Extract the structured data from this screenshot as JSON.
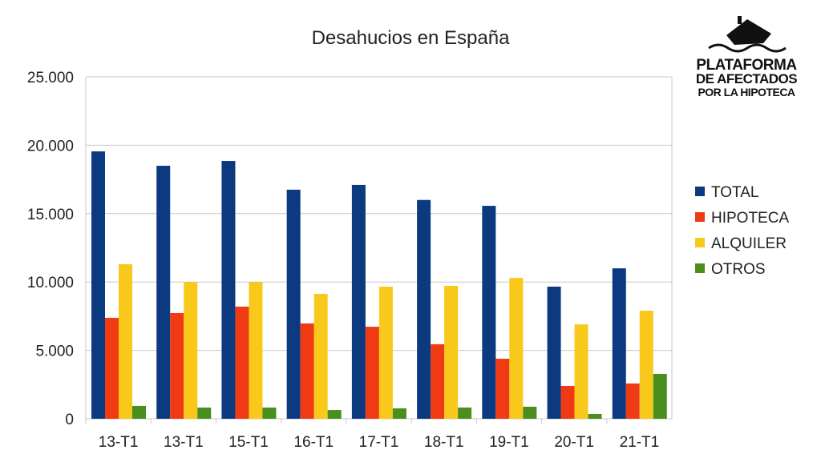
{
  "chart_data": {
    "type": "bar",
    "title": "Desahucios en España",
    "xlabel": "",
    "ylabel": "",
    "ylim": [
      0,
      25000
    ],
    "y_ticks": [
      "0",
      "5.000",
      "10.000",
      "15.000",
      "20.000",
      "25.000"
    ],
    "y_tick_values": [
      0,
      5000,
      10000,
      15000,
      20000,
      25000
    ],
    "grid": true,
    "legend_position": "right",
    "categories": [
      "13-T1",
      "13-T1",
      "15-T1",
      "16-T1",
      "17-T1",
      "18-T1",
      "19-T1",
      "20-T1",
      "21-T1"
    ],
    "series": [
      {
        "name": "TOTAL",
        "color": "#0b3a80",
        "values": [
          19550,
          18500,
          18850,
          16750,
          17100,
          16000,
          15570,
          9660,
          11000
        ]
      },
      {
        "name": "HIPOTECA",
        "color": "#f03a13",
        "values": [
          7380,
          7730,
          8200,
          6970,
          6730,
          5450,
          4390,
          2400,
          2580
        ]
      },
      {
        "name": "ALQUILER",
        "color": "#f8c91a",
        "values": [
          11300,
          10000,
          10000,
          9130,
          9660,
          9720,
          10300,
          6900,
          7900
        ]
      },
      {
        "name": "OTROS",
        "color": "#4a8f1e",
        "values": [
          940,
          820,
          820,
          640,
          760,
          820,
          880,
          350,
          3280
        ]
      }
    ]
  },
  "logo": {
    "line1": "PLATAFORMA",
    "line2": "DE AFECTADOS",
    "line3": "POR LA HIPOTECA"
  }
}
